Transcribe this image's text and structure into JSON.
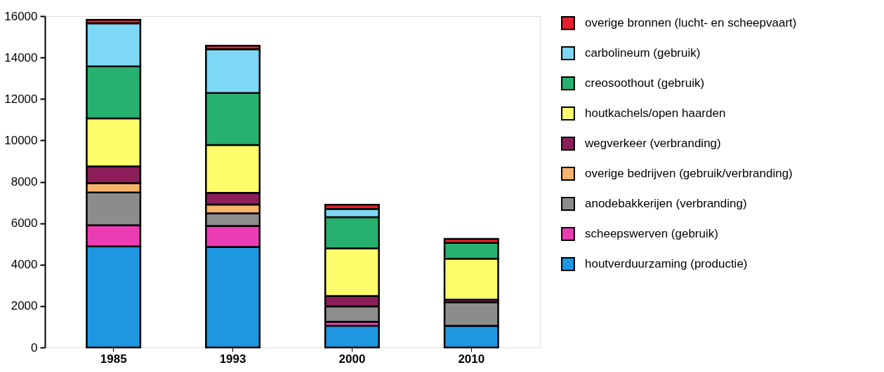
{
  "chart_data": {
    "type": "bar",
    "stacked": true,
    "categories": [
      "1985",
      "1993",
      "2000",
      "2010"
    ],
    "series": [
      {
        "name": "houtverduurzaming (productie)",
        "color": "#1e96e0",
        "values": [
          4880,
          4850,
          1050,
          1050
        ]
      },
      {
        "name": "scheepswerven (gebruik)",
        "color": "#ec3cb4",
        "values": [
          1020,
          1020,
          190,
          0
        ]
      },
      {
        "name": "anodebakkerijen (verbranding)",
        "color": "#8c8c8c",
        "values": [
          1580,
          610,
          750,
          1130
        ]
      },
      {
        "name": "overige bedrijven (gebruik/verbranding)",
        "color": "#f7b36b",
        "values": [
          450,
          420,
          0,
          0
        ]
      },
      {
        "name": "wegverkeer (verbranding)",
        "color": "#8c1e5a",
        "values": [
          810,
          570,
          500,
          130
        ]
      },
      {
        "name": "houtkachels/open haarden",
        "color": "#fdfd6b",
        "values": [
          2320,
          2310,
          2300,
          1980
        ]
      },
      {
        "name": "creosoothout (gebruik)",
        "color": "#28b070",
        "values": [
          2510,
          2510,
          1500,
          760
        ]
      },
      {
        "name": "carbolineum (gebruik)",
        "color": "#7dd8f5",
        "values": [
          2080,
          2110,
          400,
          0
        ]
      },
      {
        "name": "overige bronnen (lucht- en scheepvaart)",
        "color": "#e8202a",
        "values": [
          170,
          170,
          200,
          190
        ]
      }
    ],
    "ylim": [
      0,
      16000
    ],
    "yticks": [
      0,
      2000,
      4000,
      6000,
      8000,
      10000,
      12000,
      14000,
      16000
    ],
    "grid": false,
    "legend": "right"
  }
}
